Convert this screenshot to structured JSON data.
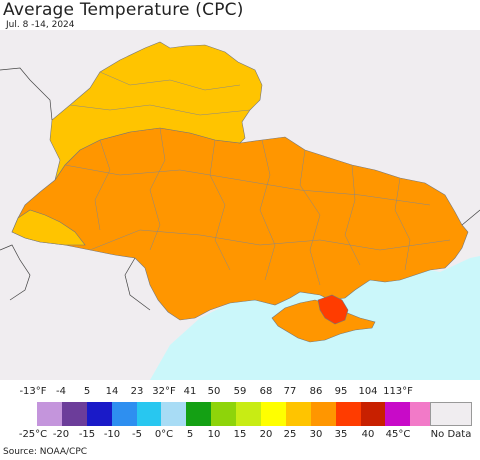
{
  "header": {
    "title": "Average Temperature (CPC)",
    "subtitle": "Jul. 8 -14, 2024"
  },
  "legend": {
    "fahrenheit_labels": [
      "-13°F",
      "-4",
      "5",
      "14",
      "23",
      "32°F",
      "41",
      "50",
      "59",
      "68",
      "77",
      "86",
      "95",
      "104",
      "113°F"
    ],
    "celsius_labels": [
      "-25°C",
      "-20",
      "-15",
      "-10",
      "-5",
      "0°C",
      "5",
      "10",
      "15",
      "20",
      "25",
      "30",
      "35",
      "40",
      "45°C"
    ],
    "colors": [
      "#c495dc",
      "#6c3d9a",
      "#1a1ac8",
      "#2e8ff0",
      "#28c7f0",
      "#a8dcf5",
      "#14a014",
      "#8ed40a",
      "#c8ec14",
      "#ffff00",
      "#ffc400",
      "#ff9600",
      "#ff3c00",
      "#c82000",
      "#c80ac8",
      "#f27ac8"
    ],
    "no_data_label": "No Data",
    "no_data_color": "#f0edf0"
  },
  "map": {
    "land_outside_color": "#f0edf0",
    "sea_color": "#cbf7fa",
    "regions": [
      {
        "name": "north-band",
        "category": "25",
        "color": "#ffc400"
      },
      {
        "name": "main-territory",
        "category": "25-30",
        "color": "#ff9600"
      },
      {
        "name": "southwest-edge",
        "category": "25",
        "color": "#ffc400"
      },
      {
        "name": "crimea-east-hotspot",
        "category": "30-35",
        "color": "#ff3c00"
      }
    ]
  },
  "footer": {
    "source": "Source: NOAA/CPC"
  }
}
